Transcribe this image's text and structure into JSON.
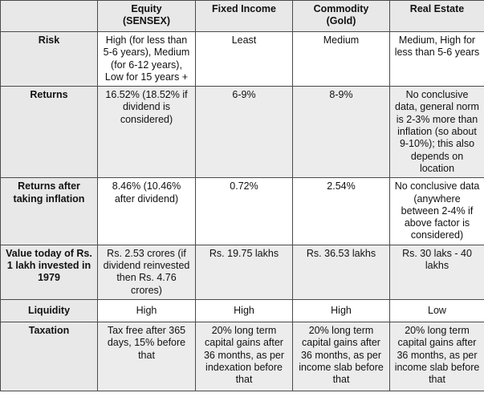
{
  "header": {
    "corner": "",
    "columns": [
      "Equity (SENSEX)",
      "Fixed Income",
      "Commodity (Gold)",
      "Real Estate"
    ]
  },
  "rows": [
    {
      "label": "Risk",
      "cells": [
        "High (for less than 5-6 years), Medium (for 6-12 years), Low for 15 years +",
        "Least",
        "Medium",
        "Medium, High for less than 5-6 years"
      ]
    },
    {
      "label": "Returns",
      "cells": [
        "16.52% (18.52% if dividend is considered)",
        "6-9%",
        "8-9%",
        "No conclusive data, general norm is 2-3% more than inflation (so about 9-10%); this also depends on location"
      ]
    },
    {
      "label": "Returns after taking inflation",
      "cells": [
        "8.46% (10.46% after dividend)",
        "0.72%",
        "2.54%",
        "No conclusive data (anywhere between 2-4% if above factor is considered)"
      ]
    },
    {
      "label": "Value today of Rs. 1 lakh invested in 1979",
      "cells": [
        "Rs. 2.53 crores (if dividend reinvested then Rs. 4.76 crores)",
        "Rs. 19.75 lakhs",
        "Rs. 36.53 lakhs",
        "Rs. 30 laks - 40 lakhs"
      ]
    },
    {
      "label": "Liquidity",
      "cells": [
        "High",
        "High",
        "High",
        "Low"
      ]
    },
    {
      "label": "Taxation",
      "cells": [
        "Tax free after 365 days, 15% before that",
        "20% long term capital gains after 36 months, as per indexation before that",
        "20% long term capital gains after 36 months, as per income slab before that",
        "20% long term capital gains after 36 months, as per income slab before that"
      ]
    }
  ]
}
